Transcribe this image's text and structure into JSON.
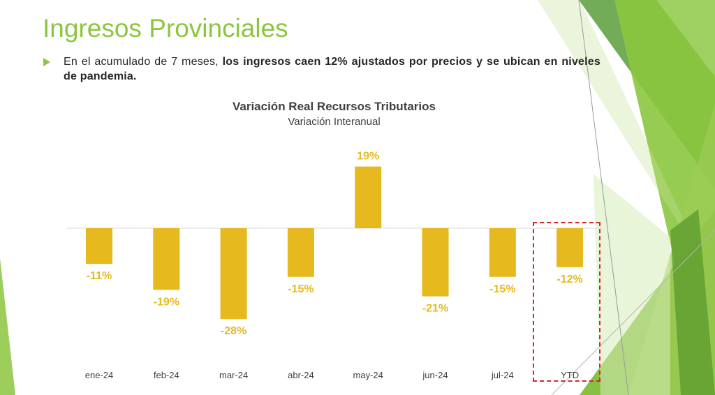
{
  "slide": {
    "title": "Ingresos Provinciales",
    "bullet_plain": "En el acumulado de 7 meses, ",
    "bullet_bold": "los ingresos caen 12% ajustados por precios y se ubican en niveles de pandemia."
  },
  "colors": {
    "title_green": "#8cc63f",
    "bar": "#e6b91e",
    "highlight_box": "#d62828"
  },
  "chart_data": {
    "type": "bar",
    "title": "Variación Real Recursos Tributarios",
    "subtitle": "Variación Interanual",
    "categories": [
      "ene-24",
      "feb-24",
      "mar-24",
      "abr-24",
      "may-24",
      "jun-24",
      "jul-24",
      "YTD"
    ],
    "values": [
      -11,
      -19,
      -28,
      -15,
      19,
      -21,
      -15,
      -12
    ],
    "data_labels": [
      "-11%",
      "-19%",
      "-28%",
      "-15%",
      "19%",
      "-21%",
      "-15%",
      "-12%"
    ],
    "unit": "%",
    "grid": false,
    "legend": "none",
    "highlighted_category": "YTD"
  }
}
